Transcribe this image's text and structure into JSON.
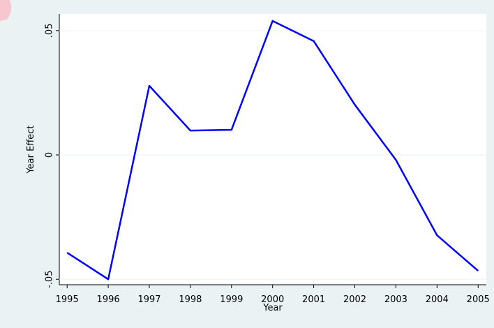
{
  "chart_data": {
    "type": "line",
    "x": [
      1995,
      1996,
      1997,
      1998,
      1999,
      2000,
      2001,
      2002,
      2003,
      2004,
      2005
    ],
    "series": [
      {
        "name": "Year Effect",
        "color": "#0000ff",
        "values": [
          -0.0393,
          -0.05,
          0.0278,
          0.0098,
          0.0101,
          0.0539,
          0.0458,
          0.0202,
          -0.002,
          -0.0323,
          -0.0466
        ]
      }
    ],
    "xlabel": "Year",
    "ylabel": "Year Effect",
    "xlim": [
      1994.81,
      2005.2
    ],
    "ylim": [
      -0.0522,
      0.0567
    ],
    "xticks": [
      1995,
      1996,
      1997,
      1998,
      1999,
      2000,
      2001,
      2002,
      2003,
      2004,
      2005
    ],
    "yticks": [
      {
        "value": -0.05,
        "label": "-.05"
      },
      0,
      {
        "value": 0.05,
        "label": ".05"
      }
    ],
    "grid": true
  }
}
